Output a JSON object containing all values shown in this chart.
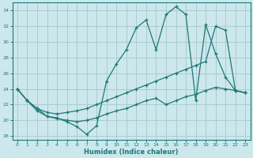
{
  "xlabel": "Humidex (Indice chaleur)",
  "bg_color": "#cce8ec",
  "grid_color": "#aacccc",
  "line_color": "#1e7878",
  "xlim": [
    -0.5,
    23.5
  ],
  "ylim": [
    17.5,
    35.0
  ],
  "xticks": [
    0,
    1,
    2,
    3,
    4,
    5,
    6,
    7,
    8,
    9,
    10,
    11,
    12,
    13,
    14,
    15,
    16,
    17,
    18,
    19,
    20,
    21,
    22,
    23
  ],
  "yticks": [
    18,
    20,
    22,
    24,
    26,
    28,
    30,
    32,
    34
  ],
  "line1_x": [
    0,
    1,
    2,
    3,
    4,
    5,
    6,
    7,
    8,
    9,
    10,
    11,
    12,
    13,
    14,
    15,
    16,
    17,
    18,
    19,
    20,
    21,
    22,
    23
  ],
  "line1_y": [
    24.0,
    22.5,
    21.2,
    20.5,
    20.3,
    19.8,
    19.2,
    18.2,
    19.3,
    25.0,
    27.2,
    29.0,
    31.8,
    32.8,
    29.0,
    33.5,
    34.5,
    33.5,
    22.5,
    32.2,
    28.5,
    25.5,
    23.8,
    23.5
  ],
  "line2_x": [
    0,
    1,
    2,
    3,
    4,
    5,
    6,
    7,
    8,
    9,
    10,
    11,
    12,
    13,
    14,
    15,
    16,
    17,
    18,
    19,
    20,
    21,
    22,
    23
  ],
  "line2_y": [
    24.0,
    22.5,
    21.5,
    21.0,
    20.8,
    21.0,
    21.2,
    21.5,
    22.0,
    22.5,
    23.0,
    23.5,
    24.0,
    24.5,
    25.0,
    25.5,
    26.0,
    26.5,
    27.0,
    27.5,
    32.0,
    31.5,
    23.8,
    23.5
  ],
  "line3_x": [
    0,
    1,
    2,
    3,
    4,
    5,
    6,
    7,
    8,
    9,
    10,
    11,
    12,
    13,
    14,
    15,
    16,
    17,
    18,
    19,
    20,
    21,
    22,
    23
  ],
  "line3_y": [
    24.0,
    22.5,
    21.5,
    20.5,
    20.2,
    20.0,
    19.8,
    20.0,
    20.3,
    20.8,
    21.2,
    21.5,
    22.0,
    22.5,
    22.8,
    22.0,
    22.5,
    23.0,
    23.3,
    23.8,
    24.2,
    24.0,
    23.8,
    23.5
  ]
}
